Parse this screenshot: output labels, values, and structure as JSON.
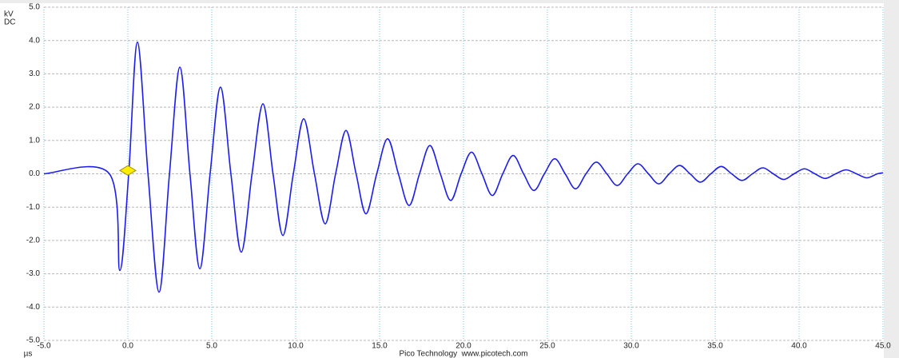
{
  "chart_data": {
    "type": "line",
    "y_unit_labels": [
      "kV",
      "DC"
    ],
    "x_unit_label": "µs",
    "footer": "Pico Technology  www.picotech.com",
    "color": "#1c1cf0",
    "grid": true,
    "trigger": {
      "x": 0,
      "y": 0.1,
      "color": "#ffee00"
    },
    "xlim": [
      -5,
      45
    ],
    "ylim": [
      -5,
      5
    ],
    "xticks": [
      {
        "value": -5,
        "label": "-5.0"
      },
      {
        "value": 0,
        "label": "0.0"
      },
      {
        "value": 5,
        "label": "5.0"
      },
      {
        "value": 10,
        "label": "10.0"
      },
      {
        "value": 15,
        "label": "15.0"
      },
      {
        "value": 20,
        "label": "20.0"
      },
      {
        "value": 25,
        "label": "25.0"
      },
      {
        "value": 30,
        "label": "30.0"
      },
      {
        "value": 35,
        "label": "35.0"
      },
      {
        "value": 40,
        "label": "40.0"
      },
      {
        "value": 45,
        "label": "45.0"
      }
    ],
    "yticks": [
      {
        "value": -5,
        "label": "-5.0"
      },
      {
        "value": -4,
        "label": "-4.0"
      },
      {
        "value": -3,
        "label": "-3.0"
      },
      {
        "value": -2,
        "label": "-2.0"
      },
      {
        "value": -1,
        "label": "-1.0"
      },
      {
        "value": 0,
        "label": "0.0"
      },
      {
        "value": 1,
        "label": "1.0"
      },
      {
        "value": 2,
        "label": "2.0"
      },
      {
        "value": 3,
        "label": "3.0"
      },
      {
        "value": 4,
        "label": "4.0"
      },
      {
        "value": 5,
        "label": "5.0"
      }
    ],
    "x": [
      -5,
      -1.1,
      -0.48,
      0.05,
      0.57,
      1.2,
      1.86,
      2.48,
      3.1,
      3.7,
      4.29,
      4.9,
      5.52,
      6.14,
      6.76,
      7.4,
      8.05,
      8.65,
      9.24,
      9.86,
      10.48,
      11.12,
      11.76,
      12.38,
      13.0,
      13.6,
      14.19,
      14.83,
      15.48,
      16.12,
      16.76,
      17.38,
      18.0,
      18.62,
      19.24,
      19.86,
      20.48,
      21.1,
      21.72,
      22.34,
      22.96,
      23.58,
      24.2,
      24.82,
      25.44,
      26.06,
      26.68,
      27.3,
      27.92,
      28.54,
      29.16,
      29.78,
      30.4,
      31.02,
      31.64,
      32.26,
      32.88,
      33.5,
      34.12,
      34.74,
      35.36,
      35.98,
      36.6,
      37.22,
      37.84,
      38.46,
      39.08,
      39.7,
      40.32,
      40.94,
      41.56,
      42.18,
      42.8,
      43.42,
      44.04,
      44.66,
      45
    ],
    "values": [
      0,
      0,
      -2.9,
      0,
      3.95,
      0,
      -3.55,
      0,
      3.2,
      0,
      -2.85,
      0,
      2.6,
      0,
      -2.35,
      0,
      2.1,
      0,
      -1.85,
      0,
      1.65,
      0,
      -1.5,
      0,
      1.3,
      0,
      -1.2,
      0,
      1.05,
      0,
      -0.95,
      0,
      0.85,
      0,
      -0.8,
      0,
      0.65,
      0,
      -0.65,
      0,
      0.55,
      0,
      -0.5,
      0,
      0.45,
      0,
      -0.45,
      0,
      0.35,
      0,
      -0.35,
      0,
      0.3,
      0,
      -0.3,
      0,
      0.25,
      0,
      -0.25,
      0,
      0.22,
      0,
      -0.2,
      0,
      0.18,
      0,
      -0.17,
      0,
      0.15,
      0,
      -0.14,
      0,
      0.12,
      0,
      -0.12,
      0,
      0.03
    ]
  }
}
